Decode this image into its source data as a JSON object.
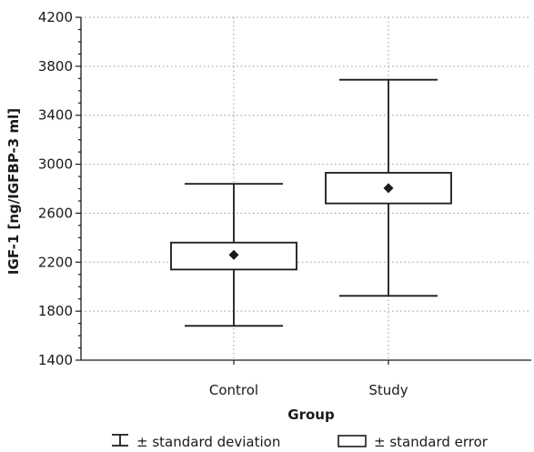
{
  "chart_data": {
    "type": "box",
    "xlabel": "Group",
    "ylabel": "IGF-1 [ng/IGFBP-3 ml]",
    "ylim": [
      1400,
      4200
    ],
    "yticks": [
      1400,
      1800,
      2200,
      2600,
      3000,
      3400,
      3800,
      4200
    ],
    "grid": true,
    "categories": [
      "Control",
      "Study"
    ],
    "groups": [
      {
        "category": "Control",
        "mean": 2260,
        "se_low": 2140,
        "se_high": 2360,
        "sd_low": 1680,
        "sd_high": 2840
      },
      {
        "category": "Study",
        "mean": 2805,
        "se_low": 2680,
        "se_high": 2930,
        "sd_low": 1925,
        "sd_high": 3690
      }
    ],
    "legend": {
      "placement": "bottom",
      "items": [
        "± standard deviation",
        "± standard error"
      ]
    }
  },
  "colors": {
    "stroke": "#1a1a1a",
    "grid": "#9a9a9a",
    "background": "#ffffff"
  }
}
